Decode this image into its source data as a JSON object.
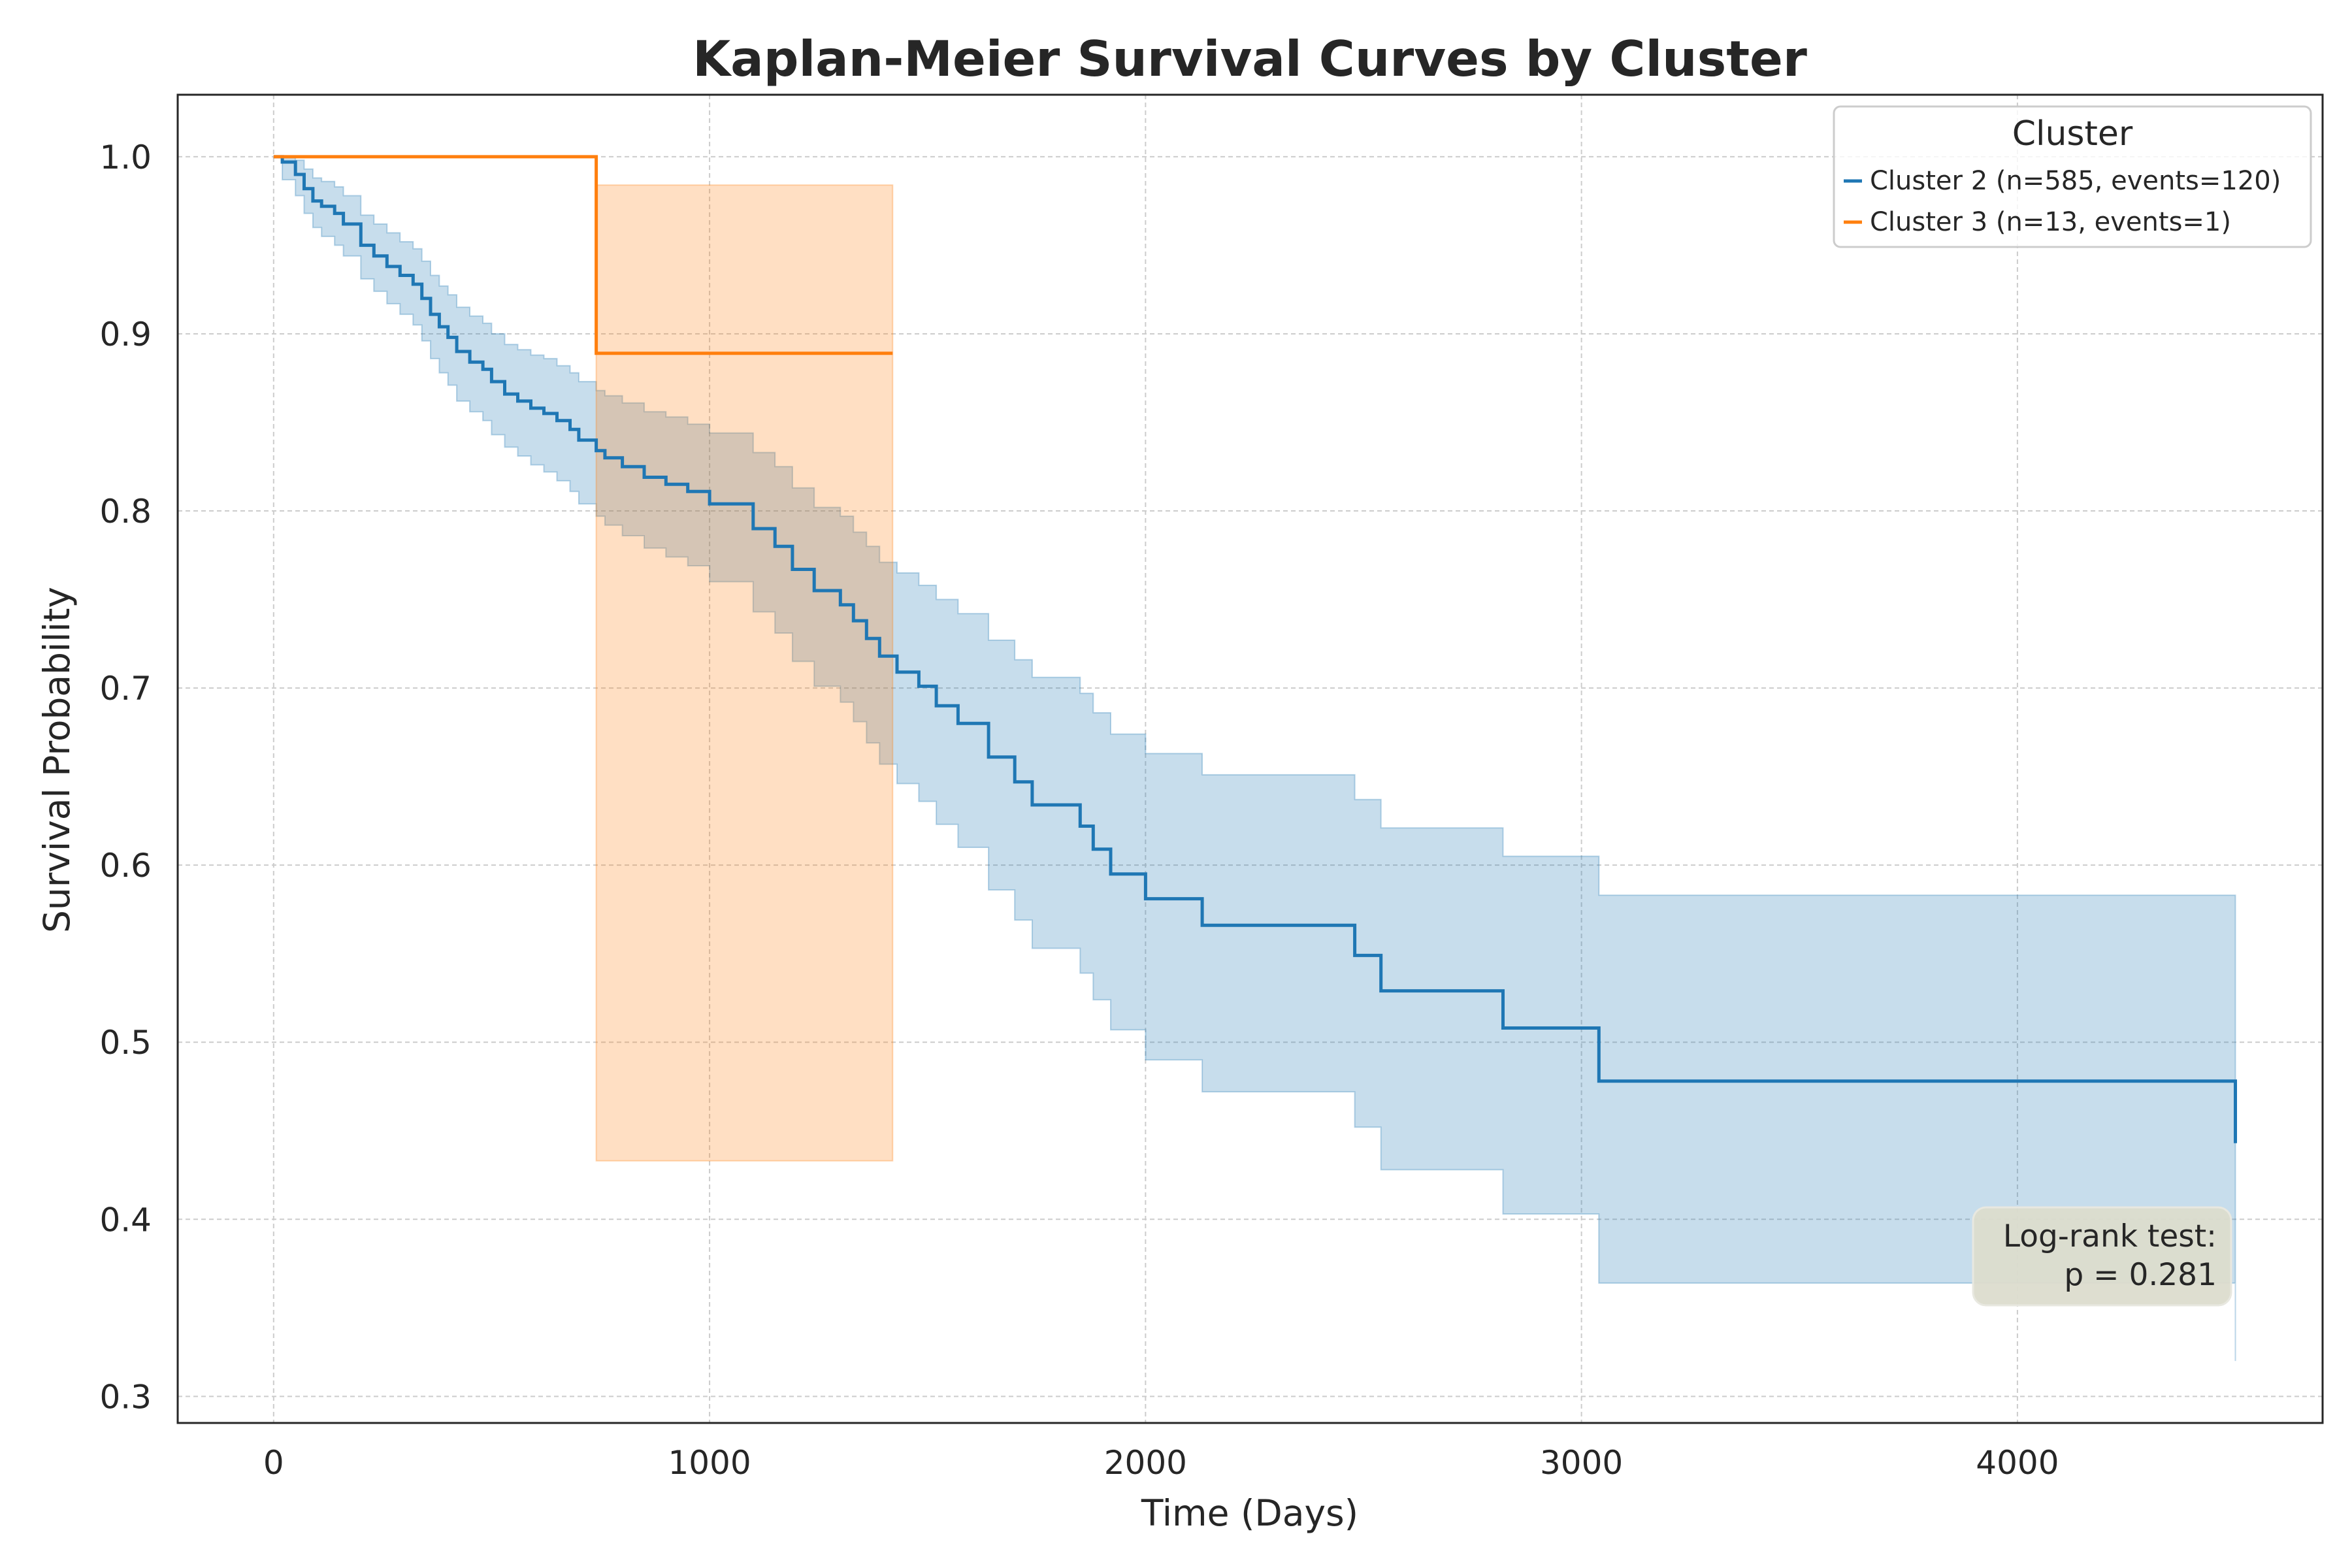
{
  "chart_data": {
    "type": "line",
    "title": "Kaplan-Meier Survival Curves by Cluster",
    "xlabel": "Time (Days)",
    "ylabel": "Survival Probability",
    "xlim": [
      -220,
      4700
    ],
    "ylim": [
      0.285,
      1.035
    ],
    "xticks": [
      0,
      1000,
      2000,
      3000,
      4000
    ],
    "yticks": [
      0.3,
      0.4,
      0.5,
      0.6,
      0.7,
      0.8,
      0.9,
      1.0
    ],
    "grid": true,
    "legend": {
      "title": "Cluster",
      "placement": "top-right",
      "entries": [
        "Cluster 2 (n=585, events=120)",
        "Cluster 3 (n=13, events=1)"
      ]
    },
    "annotation": {
      "lines": [
        "Log-rank test:",
        "p = 0.281"
      ],
      "placement": "bottom-right"
    },
    "series": [
      {
        "name": "Cluster 2 (n=585, events=120)",
        "color": "#1f77b4",
        "x": [
          0,
          20,
          50,
          70,
          90,
          110,
          140,
          160,
          200,
          230,
          260,
          290,
          320,
          340,
          360,
          380,
          400,
          420,
          450,
          480,
          500,
          530,
          560,
          590,
          620,
          650,
          680,
          700,
          740,
          760,
          800,
          850,
          900,
          950,
          1000,
          1100,
          1150,
          1190,
          1240,
          1300,
          1330,
          1360,
          1390,
          1430,
          1480,
          1520,
          1570,
          1640,
          1700,
          1740,
          1850,
          1880,
          1920,
          2000,
          2130,
          2480,
          2540,
          2820,
          3040,
          4500
        ],
        "y": [
          1.0,
          0.997,
          0.99,
          0.982,
          0.975,
          0.972,
          0.968,
          0.962,
          0.95,
          0.944,
          0.938,
          0.933,
          0.928,
          0.92,
          0.911,
          0.904,
          0.898,
          0.89,
          0.884,
          0.88,
          0.873,
          0.866,
          0.862,
          0.858,
          0.855,
          0.851,
          0.846,
          0.84,
          0.834,
          0.83,
          0.825,
          0.819,
          0.815,
          0.811,
          0.804,
          0.79,
          0.78,
          0.767,
          0.755,
          0.747,
          0.738,
          0.728,
          0.718,
          0.709,
          0.701,
          0.69,
          0.68,
          0.661,
          0.647,
          0.634,
          0.622,
          0.609,
          0.595,
          0.581,
          0.566,
          0.549,
          0.529,
          0.508,
          0.478,
          0.443
        ],
        "ci_lower": [
          1.0,
          0.987,
          0.978,
          0.968,
          0.96,
          0.955,
          0.95,
          0.944,
          0.931,
          0.924,
          0.917,
          0.911,
          0.905,
          0.896,
          0.886,
          0.878,
          0.871,
          0.862,
          0.856,
          0.851,
          0.843,
          0.836,
          0.831,
          0.826,
          0.822,
          0.817,
          0.811,
          0.804,
          0.797,
          0.792,
          0.786,
          0.779,
          0.774,
          0.769,
          0.76,
          0.743,
          0.731,
          0.715,
          0.701,
          0.692,
          0.681,
          0.669,
          0.657,
          0.646,
          0.636,
          0.623,
          0.61,
          0.586,
          0.569,
          0.553,
          0.539,
          0.524,
          0.507,
          0.49,
          0.472,
          0.452,
          0.428,
          0.403,
          0.364,
          0.32
        ],
        "ci_upper": [
          1.0,
          1.0,
          0.998,
          0.993,
          0.988,
          0.986,
          0.983,
          0.978,
          0.967,
          0.962,
          0.957,
          0.952,
          0.948,
          0.941,
          0.933,
          0.927,
          0.922,
          0.915,
          0.91,
          0.906,
          0.9,
          0.894,
          0.891,
          0.888,
          0.886,
          0.882,
          0.878,
          0.873,
          0.868,
          0.865,
          0.861,
          0.856,
          0.853,
          0.849,
          0.844,
          0.833,
          0.825,
          0.813,
          0.802,
          0.797,
          0.788,
          0.78,
          0.771,
          0.765,
          0.758,
          0.75,
          0.742,
          0.727,
          0.716,
          0.706,
          0.697,
          0.686,
          0.674,
          0.663,
          0.651,
          0.637,
          0.621,
          0.605,
          0.583,
          0.56
        ]
      },
      {
        "name": "Cluster 3 (n=13, events=1)",
        "color": "#ff7f0e",
        "x": [
          0,
          740,
          1420
        ],
        "y": [
          1.0,
          0.889,
          0.889
        ],
        "ci_lower": [
          1.0,
          0.433,
          0.433
        ],
        "ci_upper": [
          1.0,
          0.984,
          0.984
        ]
      }
    ]
  }
}
